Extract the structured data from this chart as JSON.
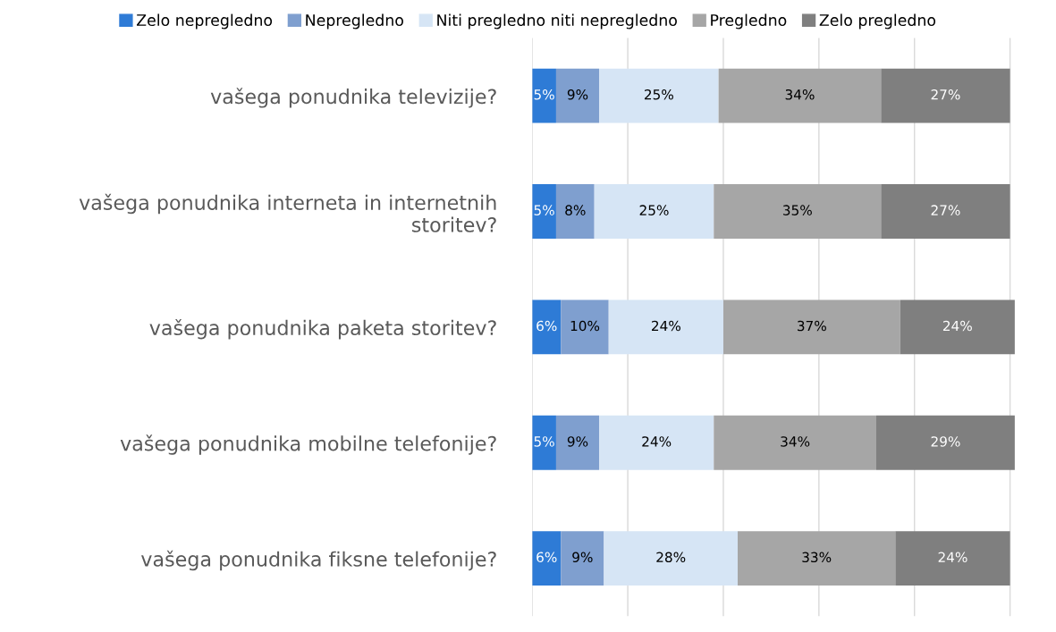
{
  "chart_data": {
    "type": "bar",
    "orientation": "horizontal",
    "stacked": true,
    "grid": "x",
    "legend": "top",
    "tick_labels": "y",
    "categories": [
      "vašega ponudnika televizije?",
      "vašega ponudnika interneta in internetnih storitev?",
      "vašega ponudnika paketa storitev?",
      "vašega ponudnika mobilne telefonije?",
      "vašega ponudnika fiksne telefonije?"
    ],
    "series": [
      {
        "name": "Zelo nepregledno",
        "color": "#2e7bd6",
        "values": [
          5,
          5,
          6,
          5,
          6
        ],
        "value_labels": [
          "5%",
          "5%",
          "6%",
          "5%",
          "6%"
        ]
      },
      {
        "name": "Nepregledno",
        "color": "#7f9fcf",
        "values": [
          9,
          8,
          10,
          9,
          9
        ],
        "value_labels": [
          "9%",
          "8%",
          "10%",
          "9%",
          "9%"
        ]
      },
      {
        "name": "Niti pregledno niti nepregledno",
        "color": "#d6e5f5",
        "values": [
          25,
          25,
          24,
          24,
          28
        ],
        "value_labels": [
          "25%",
          "25%",
          "24%",
          "24%",
          "28%"
        ]
      },
      {
        "name": "Pregledno",
        "color": "#a6a6a6",
        "values": [
          34,
          35,
          37,
          34,
          33
        ],
        "value_labels": [
          "34%",
          "35%",
          "37%",
          "34%",
          "33%"
        ]
      },
      {
        "name": "Zelo pregledno",
        "color": "#7f7f7f",
        "values": [
          27,
          27,
          24,
          29,
          24
        ],
        "value_labels": [
          "27%",
          "27%",
          "24%",
          "29%",
          "24%"
        ]
      }
    ]
  }
}
